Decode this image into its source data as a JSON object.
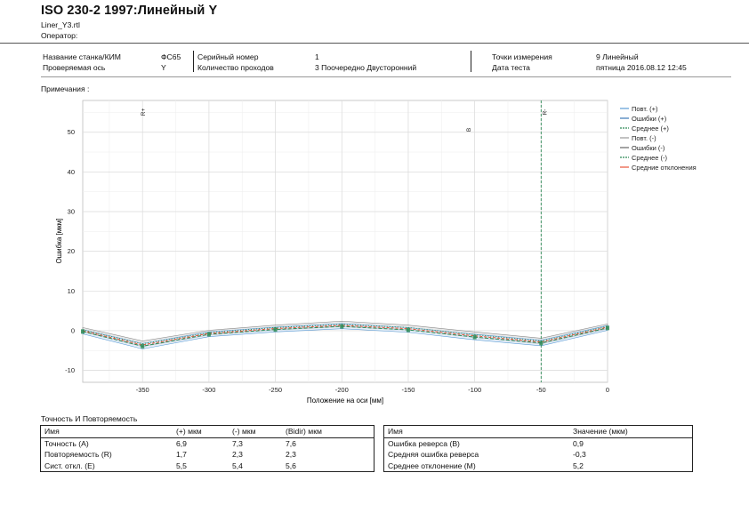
{
  "header": {
    "title": "ISO 230-2 1997:Линейный Y",
    "file_name": "Liner_Y3.rtl",
    "operator_label": "Оператор:"
  },
  "info": {
    "machine_label": "Название станка/КИМ",
    "machine_value": "ФС65",
    "axis_label": "Проверяемая ось",
    "axis_value": "Y",
    "serial_label": "Серийный номер",
    "serial_value": "1",
    "runs_label": "Количество проходов",
    "runs_value": "3 Поочередно Двусторонний",
    "points_label": "Точки измерения",
    "points_value": "9 Линейный",
    "date_label": "Дата теста",
    "date_value": "пятница 2016.08.12 12:45"
  },
  "notes_label": "Примечания :",
  "legend": {
    "items": [
      {
        "label": "Повт. (+)",
        "color": "#5b9bd5"
      },
      {
        "label": "Ошибки (+)",
        "color": "#3d7ab8"
      },
      {
        "label": "Среднее (+)",
        "color": "#2e8b57"
      },
      {
        "label": "Повт. (-)",
        "color": "#999999"
      },
      {
        "label": "Ошибки (-)",
        "color": "#666666"
      },
      {
        "label": "Среднее (-)",
        "color": "#2e8b57"
      },
      {
        "label": "Средние отклонения",
        "color": "#e8553a"
      }
    ]
  },
  "chart_data": {
    "type": "line",
    "xlabel": "Положение на оси [мм]",
    "ylabel": "Ошибка [мкм]",
    "xlim": [
      -395,
      0
    ],
    "ylim": [
      -13,
      58
    ],
    "x_ticks": [
      -350,
      -300,
      -250,
      -200,
      -150,
      -100,
      -50,
      0
    ],
    "y_ticks": [
      -10,
      0,
      10,
      20,
      30,
      40,
      50
    ],
    "grid": true,
    "legend_position": "right",
    "x": [
      -395,
      -350,
      -300,
      -250,
      -200,
      -150,
      -100,
      -50,
      0
    ],
    "series": [
      {
        "name": "Среднее (+)",
        "color": "#2e8b57",
        "dash": "4,2",
        "values": [
          -0.2,
          -3.9,
          -0.9,
          0.3,
          1.1,
          0.2,
          -1.6,
          -3.1,
          0.7
        ]
      },
      {
        "name": "Среднее (-)",
        "color": "#2e8b57",
        "dash": "1,2",
        "values": [
          0.2,
          -3.3,
          -0.5,
          0.8,
          1.6,
          0.8,
          -1.0,
          -2.6,
          1.1
        ]
      },
      {
        "name": "Средние отклонения",
        "color": "#e8553a",
        "dash": "3,2",
        "values": [
          0.0,
          -3.6,
          -0.7,
          0.55,
          1.35,
          0.5,
          -1.3,
          -2.85,
          0.9
        ]
      }
    ],
    "band_plus": {
      "low": [
        -0.8,
        -4.6,
        -1.5,
        -0.3,
        0.5,
        -0.4,
        -2.3,
        -3.8,
        0.1
      ],
      "high": [
        0.3,
        -3.2,
        -0.3,
        0.9,
        1.8,
        0.8,
        -0.9,
        -2.4,
        1.3
      ]
    },
    "band_minus": {
      "low": [
        -0.3,
        -4.0,
        -1.1,
        0.2,
        1.0,
        0.2,
        -1.7,
        -3.3,
        0.5
      ],
      "high": [
        0.8,
        -2.6,
        0.1,
        1.4,
        2.4,
        1.4,
        -0.3,
        -1.9,
        1.7
      ]
    },
    "markers": [
      {
        "label": "R+",
        "x": -350
      },
      {
        "label": "B",
        "x": -105
      },
      {
        "label": "R-",
        "x": -48
      }
    ],
    "vertical_line_x": -50
  },
  "stats_left": {
    "title": "Точность И Повторяемость",
    "headers": [
      "Имя",
      "(+) мкм",
      "(-) мкм",
      "(Bidir) мкм"
    ],
    "rows": [
      [
        "Точность (A)",
        "6,9",
        "7,3",
        "7,6"
      ],
      [
        "Повторяемость (R)",
        "1,7",
        "2,3",
        "2,3"
      ],
      [
        "Сист. откл. (E)",
        "5,5",
        "5,4",
        "5,6"
      ]
    ]
  },
  "stats_right": {
    "headers": [
      "Имя",
      "Значение (мкм)"
    ],
    "rows": [
      [
        "Ошибка реверса (B)",
        "0,9"
      ],
      [
        "Средняя ошибка реверса",
        "-0,3"
      ],
      [
        "Среднее отклонение (M)",
        "5,2"
      ]
    ]
  }
}
